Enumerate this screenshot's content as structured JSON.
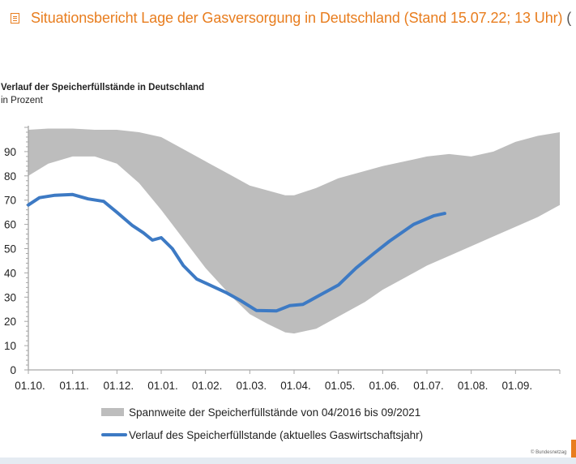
{
  "header": {
    "icon": "document-list-icon",
    "title": "Situationsbericht Lage der Gasversorgung in Deutschland (Stand 15.07.22; 13 Uhr)",
    "trail": " ("
  },
  "chart_title": "Verlauf der Speicherfüllstände in Deutschland",
  "chart_subtitle": "in Prozent",
  "copyright": "© Bundesnetzag",
  "colors": {
    "band": "#bdbdbd",
    "line": "#3d7ac4",
    "accent": "#e87d1e",
    "axis": "#a6a6a6"
  },
  "chart_data": {
    "type": "area",
    "title": "Verlauf der Speicherfüllstände in Deutschland",
    "subtitle": "in Prozent",
    "xlabel": "",
    "ylabel": "in Prozent",
    "ylim": [
      0,
      100
    ],
    "xlim_months": [
      0,
      12
    ],
    "yticks": [
      0,
      10,
      20,
      30,
      40,
      50,
      60,
      70,
      80,
      90
    ],
    "xticks": [
      {
        "label": "01.10.",
        "m": 0
      },
      {
        "label": "01.11.",
        "m": 1
      },
      {
        "label": "01.12.",
        "m": 2
      },
      {
        "label": "01.01.",
        "m": 3
      },
      {
        "label": "01.02.",
        "m": 4
      },
      {
        "label": "01.03.",
        "m": 5
      },
      {
        "label": "01.04.",
        "m": 6
      },
      {
        "label": "01.05.",
        "m": 7
      },
      {
        "label": "01.06.",
        "m": 8
      },
      {
        "label": "01.07.",
        "m": 9
      },
      {
        "label": "01.08.",
        "m": 10
      },
      {
        "label": "01.09.",
        "m": 11
      }
    ],
    "grid": false,
    "legend_position": "bottom",
    "series": [
      {
        "name": "Spannweite der Speicherfüllstände von 04/2016 bis 09/2021",
        "kind": "band",
        "x_months": [
          0,
          0.45,
          1.0,
          1.5,
          2.0,
          2.5,
          3.0,
          3.5,
          4.0,
          4.6,
          5.0,
          5.4,
          5.8,
          6.0,
          6.5,
          7.0,
          7.6,
          8.0,
          8.5,
          9.0,
          9.5,
          10.0,
          10.5,
          11.0,
          11.5,
          12.0
        ],
        "upper": [
          99,
          99.5,
          99.5,
          99,
          99,
          98,
          96,
          91,
          86,
          80,
          76,
          74,
          72,
          72,
          75,
          79,
          82,
          84,
          86,
          88,
          89,
          88,
          90,
          94,
          96.5,
          98
        ],
        "lower": [
          80,
          85,
          88,
          88,
          85,
          77,
          66,
          54,
          42,
          30,
          23,
          19,
          15.5,
          15,
          17,
          22,
          28,
          33,
          38,
          43,
          47,
          51,
          55,
          59,
          63,
          68
        ]
      },
      {
        "name": "Verlauf des Speicherfüllstande (aktuelles Gaswirtschaftsjahr)",
        "kind": "line",
        "x_months": [
          0,
          0.25,
          0.6,
          1.0,
          1.35,
          1.7,
          2.0,
          2.35,
          2.6,
          2.8,
          3.0,
          3.25,
          3.5,
          3.8,
          4.1,
          4.45,
          4.8,
          5.15,
          5.6,
          5.9,
          6.2,
          6.55,
          7.0,
          7.4,
          7.8,
          8.15,
          8.7,
          9.15,
          9.4
        ],
        "values": [
          68,
          71,
          72,
          72.3,
          70.5,
          69.5,
          65,
          59.5,
          56.5,
          53.5,
          54.5,
          50,
          43,
          37.5,
          35,
          32,
          28.5,
          24.5,
          24.3,
          26.5,
          27,
          30.5,
          35,
          42,
          48,
          53,
          60,
          63.5,
          64.5
        ]
      }
    ]
  }
}
